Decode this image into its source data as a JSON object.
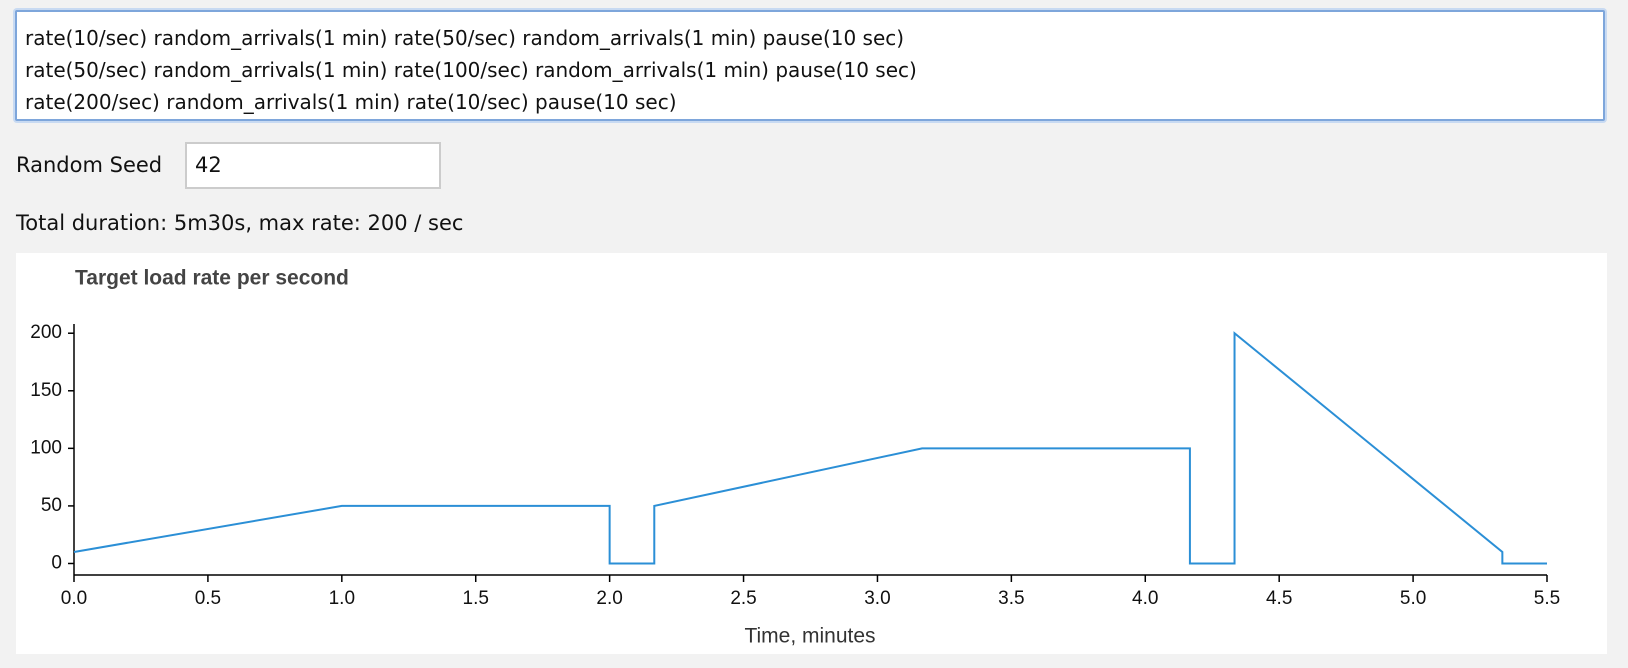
{
  "editor": {
    "lines": [
      "rate(10/sec) random_arrivals(1 min) rate(50/sec) random_arrivals(1 min) pause(10 sec)",
      "rate(50/sec) random_arrivals(1 min) rate(100/sec) random_arrivals(1 min) pause(10 sec)",
      "rate(200/sec) random_arrivals(1 min) rate(10/sec) pause(10 sec)"
    ]
  },
  "seed": {
    "label": "Random Seed",
    "value": "42"
  },
  "summary": "Total duration: 5m30s, max rate: 200 / sec",
  "chart_data": {
    "type": "line",
    "title": "Target load rate per second",
    "x_label": "Time, minutes",
    "x": [
      0,
      1,
      2,
      2,
      2.1667,
      2.1667,
      3.1667,
      4.1667,
      4.1667,
      4.3333,
      4.3333,
      5.3333,
      5.3333,
      5.5
    ],
    "values": [
      10,
      50,
      50,
      0,
      0,
      50,
      100,
      100,
      0,
      0,
      200,
      10,
      0,
      0
    ],
    "color": "#2b8fd6",
    "xlim": [
      0,
      5.5
    ],
    "ylim": [
      -10,
      208
    ],
    "xticks": [
      {
        "value": 0,
        "label": "0.0"
      },
      0.5,
      {
        "value": 1,
        "label": "1.0"
      },
      1.5,
      {
        "value": 2,
        "label": "2.0"
      },
      2.5,
      {
        "value": 3,
        "label": "3.0"
      },
      3.5,
      {
        "value": 4,
        "label": "4.0"
      },
      4.5,
      {
        "value": 5,
        "label": "5.0"
      },
      5.5
    ],
    "yticks": [
      0,
      50,
      100,
      150,
      200
    ],
    "grid": false
  }
}
